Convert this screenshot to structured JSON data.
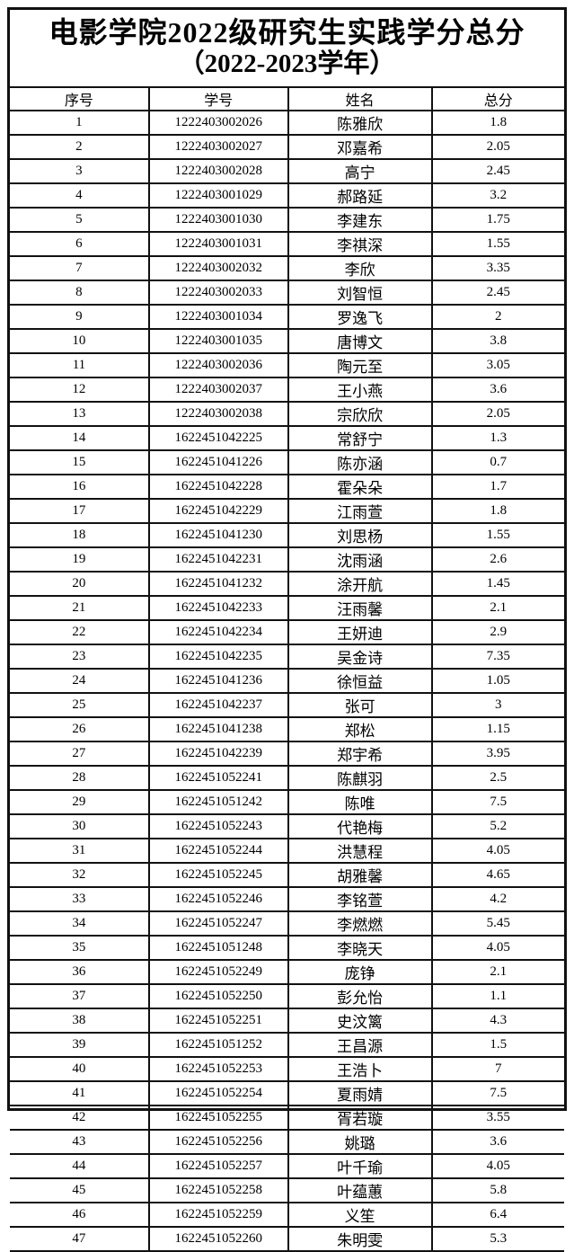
{
  "title": {
    "line1": "电影学院2022级研究生实践学分总分",
    "line2": "（2022-2023学年）"
  },
  "table": {
    "headers": [
      "序号",
      "学号",
      "姓名",
      "总分"
    ],
    "rows": [
      [
        "1",
        "1222403002026",
        "陈雅欣",
        "1.8"
      ],
      [
        "2",
        "1222403002027",
        "邓嘉希",
        "2.05"
      ],
      [
        "3",
        "1222403002028",
        "高宁",
        "2.45"
      ],
      [
        "4",
        "1222403001029",
        "郝路延",
        "3.2"
      ],
      [
        "5",
        "1222403001030",
        "李建东",
        "1.75"
      ],
      [
        "6",
        "1222403001031",
        "李祺深",
        "1.55"
      ],
      [
        "7",
        "1222403002032",
        "李欣",
        "3.35"
      ],
      [
        "8",
        "1222403002033",
        "刘智恒",
        "2.45"
      ],
      [
        "9",
        "1222403001034",
        "罗逸飞",
        "2"
      ],
      [
        "10",
        "1222403001035",
        "唐博文",
        "3.8"
      ],
      [
        "11",
        "1222403002036",
        "陶元至",
        "3.05"
      ],
      [
        "12",
        "1222403002037",
        "王小燕",
        "3.6"
      ],
      [
        "13",
        "1222403002038",
        "宗欣欣",
        "2.05"
      ],
      [
        "14",
        "1622451042225",
        "常舒宁",
        "1.3"
      ],
      [
        "15",
        "1622451041226",
        "陈亦涵",
        "0.7"
      ],
      [
        "16",
        "1622451042228",
        "霍朵朵",
        "1.7"
      ],
      [
        "17",
        "1622451042229",
        "江雨萱",
        "1.8"
      ],
      [
        "18",
        "1622451041230",
        "刘思杨",
        "1.55"
      ],
      [
        "19",
        "1622451042231",
        "沈雨涵",
        "2.6"
      ],
      [
        "20",
        "1622451041232",
        "涂开航",
        "1.45"
      ],
      [
        "21",
        "1622451042233",
        "汪雨馨",
        "2.1"
      ],
      [
        "22",
        "1622451042234",
        "王妍迪",
        "2.9"
      ],
      [
        "23",
        "1622451042235",
        "吴金诗",
        "7.35"
      ],
      [
        "24",
        "1622451041236",
        "徐恒益",
        "1.05"
      ],
      [
        "25",
        "1622451042237",
        "张可",
        "3"
      ],
      [
        "26",
        "1622451041238",
        "郑松",
        "1.15"
      ],
      [
        "27",
        "1622451042239",
        "郑宇希",
        "3.95"
      ],
      [
        "28",
        "1622451052241",
        "陈麒羽",
        "2.5"
      ],
      [
        "29",
        "1622451051242",
        "陈唯",
        "7.5"
      ],
      [
        "30",
        "1622451052243",
        "代艳梅",
        "5.2"
      ],
      [
        "31",
        "1622451052244",
        "洪慧程",
        "4.05"
      ],
      [
        "32",
        "1622451052245",
        "胡雅馨",
        "4.65"
      ],
      [
        "33",
        "1622451052246",
        "李铭萱",
        "4.2"
      ],
      [
        "34",
        "1622451052247",
        "李燃燃",
        "5.45"
      ],
      [
        "35",
        "1622451051248",
        "李晓天",
        "4.05"
      ],
      [
        "36",
        "1622451052249",
        "庞铮",
        "2.1"
      ],
      [
        "37",
        "1622451052250",
        "彭允怡",
        "1.1"
      ],
      [
        "38",
        "1622451052251",
        "史汶篱",
        "4.3"
      ],
      [
        "39",
        "1622451051252",
        "王昌源",
        "1.5"
      ],
      [
        "40",
        "1622451052253",
        "王浩卜",
        "7"
      ],
      [
        "41",
        "1622451052254",
        "夏雨婧",
        "7.5"
      ],
      [
        "42",
        "1622451052255",
        "胥若璇",
        "3.55"
      ],
      [
        "43",
        "1622451052256",
        "姚璐",
        "3.6"
      ],
      [
        "44",
        "1622451052257",
        "叶千瑜",
        "4.05"
      ],
      [
        "45",
        "1622451052258",
        "叶蕴蕙",
        "5.8"
      ],
      [
        "46",
        "1622451052259",
        "义笙",
        "6.4"
      ],
      [
        "47",
        "1622451052260",
        "朱明雯",
        "5.3"
      ]
    ]
  },
  "colors": {
    "border": "#111111",
    "background": "#ffffff",
    "text": "#000000"
  }
}
